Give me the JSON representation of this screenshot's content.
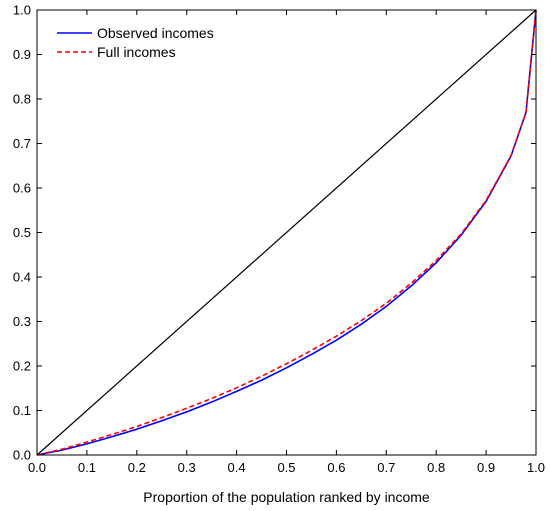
{
  "chart_data": {
    "type": "line",
    "title": "",
    "xlabel": "Proportion of the population ranked by income",
    "ylabel": "",
    "xlim": [
      0,
      1
    ],
    "ylim": [
      0,
      1
    ],
    "x_ticks": [
      "0.0",
      "0.1",
      "0.2",
      "0.3",
      "0.4",
      "0.5",
      "0.6",
      "0.7",
      "0.8",
      "0.9",
      "1.0"
    ],
    "y_ticks": [
      "0.0",
      "0.1",
      "0.2",
      "0.3",
      "0.4",
      "0.5",
      "0.6",
      "0.7",
      "0.8",
      "0.9",
      "1.0"
    ],
    "grid": false,
    "legend_position": "top-left",
    "equality_line": {
      "x": [
        0,
        1
      ],
      "y": [
        0,
        1
      ],
      "color": "#000000"
    },
    "series": [
      {
        "name": "Observed incomes",
        "color": "#0000ff",
        "dash": "solid",
        "x": [
          0,
          0.05,
          0.1,
          0.15,
          0.2,
          0.25,
          0.3,
          0.35,
          0.4,
          0.45,
          0.5,
          0.55,
          0.6,
          0.65,
          0.7,
          0.75,
          0.8,
          0.85,
          0.9,
          0.95,
          0.98,
          1.0
        ],
        "y": [
          0,
          0.011,
          0.025,
          0.041,
          0.058,
          0.077,
          0.097,
          0.119,
          0.143,
          0.168,
          0.196,
          0.226,
          0.258,
          0.294,
          0.334,
          0.38,
          0.432,
          0.494,
          0.57,
          0.672,
          0.77,
          1.0
        ]
      },
      {
        "name": "Full incomes",
        "color": "#ff0000",
        "dash": "dashed",
        "x": [
          0,
          0.05,
          0.1,
          0.15,
          0.2,
          0.25,
          0.3,
          0.35,
          0.4,
          0.45,
          0.5,
          0.55,
          0.6,
          0.65,
          0.7,
          0.75,
          0.8,
          0.85,
          0.9,
          0.95,
          0.98,
          1.0
        ],
        "y": [
          0,
          0.013,
          0.029,
          0.046,
          0.064,
          0.084,
          0.105,
          0.127,
          0.151,
          0.177,
          0.205,
          0.235,
          0.267,
          0.302,
          0.341,
          0.386,
          0.437,
          0.497,
          0.572,
          0.673,
          0.77,
          1.0
        ]
      }
    ]
  }
}
